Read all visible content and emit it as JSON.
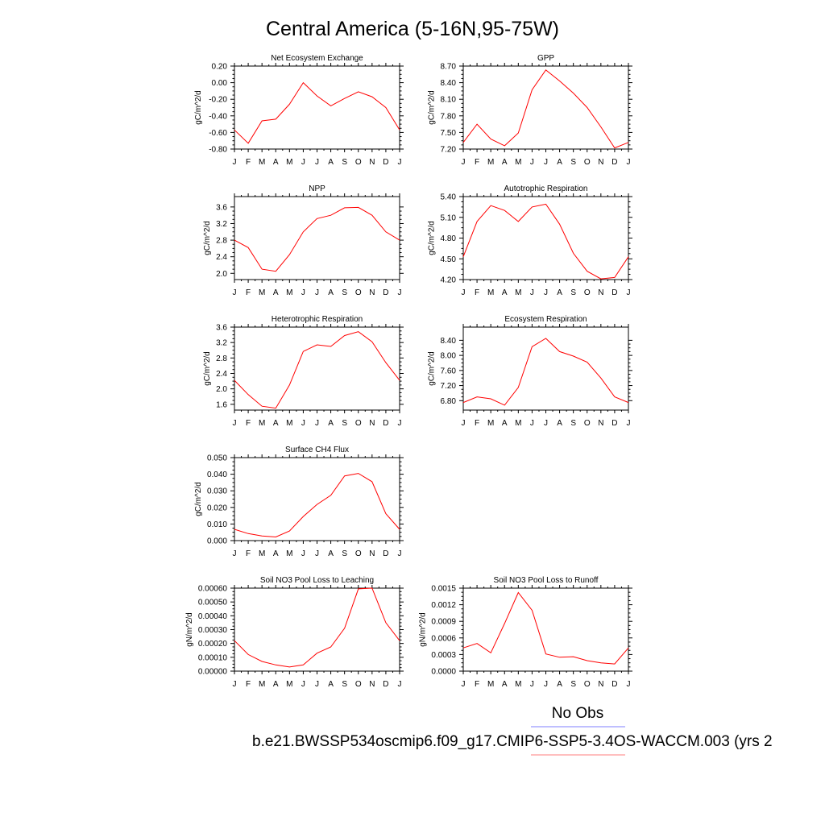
{
  "figure": {
    "title": "Central America (5-16N,95-75W)",
    "legend_label": "No Obs",
    "case_label": "b.e21.BWSSP534oscmip6.f09_g17.CMIP6-SSP5-3.4OS-WACCM.003 (yrs 2",
    "line_color": "#ff0000",
    "obs_line_color": "#7f7fff",
    "case_line_color": "#ff7f7f"
  },
  "chart_data": [
    {
      "type": "line",
      "title": "Net Ecosystem Exchange",
      "ylabel": "gC/m^2/d",
      "categories": [
        "J",
        "F",
        "M",
        "A",
        "M",
        "J",
        "J",
        "A",
        "S",
        "O",
        "N",
        "D",
        "J"
      ],
      "values": [
        -0.57,
        -0.73,
        -0.46,
        -0.44,
        -0.26,
        0.0,
        -0.16,
        -0.28,
        -0.19,
        -0.11,
        -0.17,
        -0.3,
        -0.57
      ],
      "ylim": [
        -0.8,
        0.2
      ],
      "yticks": [
        -0.8,
        -0.6,
        -0.4,
        -0.2,
        0.0,
        0.2
      ],
      "ytick_labels": [
        "-0.80",
        "-0.60",
        "-0.40",
        "-0.20",
        "0.00",
        "0.20"
      ]
    },
    {
      "type": "line",
      "title": "GPP",
      "ylabel": "gC/m^2/d",
      "categories": [
        "J",
        "F",
        "M",
        "A",
        "M",
        "J",
        "J",
        "A",
        "S",
        "O",
        "N",
        "D",
        "J"
      ],
      "values": [
        7.32,
        7.65,
        7.38,
        7.26,
        7.49,
        8.27,
        8.63,
        8.43,
        8.21,
        7.95,
        7.6,
        7.22,
        7.32
      ],
      "ylim": [
        7.2,
        8.7
      ],
      "yticks": [
        7.2,
        7.5,
        7.8,
        8.1,
        8.4,
        8.7
      ],
      "ytick_labels": [
        "7.20",
        "7.50",
        "7.80",
        "8.10",
        "8.40",
        "8.70"
      ]
    },
    {
      "type": "line",
      "title": "NPP",
      "ylabel": "gC/m^2/d",
      "categories": [
        "J",
        "F",
        "M",
        "A",
        "M",
        "J",
        "J",
        "A",
        "S",
        "O",
        "N",
        "D",
        "J"
      ],
      "values": [
        2.8,
        2.62,
        2.1,
        2.05,
        2.45,
        3.0,
        3.32,
        3.4,
        3.58,
        3.59,
        3.4,
        3.0,
        2.8
      ],
      "ylim": [
        1.85,
        3.85
      ],
      "yticks": [
        2.0,
        2.4,
        2.8,
        3.2,
        3.6
      ],
      "ytick_labels": [
        "2.0",
        "2.4",
        "2.8",
        "3.2",
        "3.6"
      ]
    },
    {
      "type": "line",
      "title": "Autotrophic Respiration",
      "ylabel": "gC/m^2/d",
      "categories": [
        "J",
        "F",
        "M",
        "A",
        "M",
        "J",
        "J",
        "A",
        "S",
        "O",
        "N",
        "D",
        "J"
      ],
      "values": [
        4.53,
        5.04,
        5.27,
        5.2,
        5.04,
        5.25,
        5.29,
        5.0,
        4.58,
        4.32,
        4.21,
        4.23,
        4.53
      ],
      "ylim": [
        4.2,
        5.4
      ],
      "yticks": [
        4.2,
        4.5,
        4.8,
        5.1,
        5.4
      ],
      "ytick_labels": [
        "4.20",
        "4.50",
        "4.80",
        "5.10",
        "5.40"
      ]
    },
    {
      "type": "line",
      "title": "Heterotrophic Respiration",
      "ylabel": "gC/m^2/d",
      "categories": [
        "J",
        "F",
        "M",
        "A",
        "M",
        "J",
        "J",
        "A",
        "S",
        "O",
        "N",
        "D",
        "J"
      ],
      "values": [
        2.22,
        1.85,
        1.55,
        1.5,
        2.1,
        2.97,
        3.14,
        3.1,
        3.38,
        3.48,
        3.22,
        2.68,
        2.22
      ],
      "ylim": [
        1.45,
        3.6
      ],
      "yticks": [
        1.6,
        2.0,
        2.4,
        2.8,
        3.2,
        3.6
      ],
      "ytick_labels": [
        "1.6",
        "2.0",
        "2.4",
        "2.8",
        "3.2",
        "3.6"
      ]
    },
    {
      "type": "line",
      "title": "Ecosystem Respiration",
      "ylabel": "gC/m^2/d",
      "categories": [
        "J",
        "F",
        "M",
        "A",
        "M",
        "J",
        "J",
        "A",
        "S",
        "O",
        "N",
        "D",
        "J"
      ],
      "values": [
        6.75,
        6.9,
        6.85,
        6.68,
        7.15,
        8.23,
        8.45,
        8.1,
        7.98,
        7.82,
        7.4,
        6.9,
        6.75
      ],
      "ylim": [
        6.55,
        8.75
      ],
      "yticks": [
        6.8,
        7.2,
        7.6,
        8.0,
        8.4
      ],
      "ytick_labels": [
        "6.80",
        "7.20",
        "7.60",
        "8.00",
        "8.40"
      ]
    },
    {
      "type": "line",
      "title": "Surface CH4 Flux",
      "ylabel": "gC/m^2/d",
      "categories": [
        "J",
        "F",
        "M",
        "A",
        "M",
        "J",
        "J",
        "A",
        "S",
        "O",
        "N",
        "D",
        "J"
      ],
      "values": [
        0.0068,
        0.0042,
        0.0028,
        0.0022,
        0.0058,
        0.0145,
        0.0218,
        0.0273,
        0.039,
        0.0405,
        0.0355,
        0.0162,
        0.0068
      ],
      "ylim": [
        0.0,
        0.05
      ],
      "yticks": [
        0.0,
        0.01,
        0.02,
        0.03,
        0.04,
        0.05
      ],
      "ytick_labels": [
        "0.000",
        "0.010",
        "0.020",
        "0.030",
        "0.040",
        "0.050"
      ]
    },
    {
      "type": "line",
      "title": "Soil NO3 Pool Loss to Leaching",
      "ylabel": "gN/m^2/d",
      "categories": [
        "J",
        "F",
        "M",
        "A",
        "M",
        "J",
        "J",
        "A",
        "S",
        "O",
        "N",
        "D",
        "J"
      ],
      "values": [
        0.00022,
        0.00012,
        7e-05,
        4.5e-05,
        3e-05,
        4.5e-05,
        0.00013,
        0.000175,
        0.00031,
        0.000595,
        0.0006,
        0.00035,
        0.00022
      ],
      "ylim": [
        0.0,
        0.0006
      ],
      "yticks": [
        0.0,
        0.0001,
        0.0002,
        0.0003,
        0.0004,
        0.0005,
        0.0006
      ],
      "ytick_labels": [
        "0.00000",
        "0.00010",
        "0.00020",
        "0.00030",
        "0.00040",
        "0.00050",
        "0.00060"
      ]
    },
    {
      "type": "line",
      "title": "Soil NO3 Pool Loss to Runoff",
      "ylabel": "gN/m^2/d",
      "categories": [
        "J",
        "F",
        "M",
        "A",
        "M",
        "J",
        "J",
        "A",
        "S",
        "O",
        "N",
        "D",
        "J"
      ],
      "values": [
        0.00042,
        0.0005,
        0.00033,
        0.00086,
        0.00142,
        0.0011,
        0.00031,
        0.00025,
        0.00026,
        0.00019,
        0.00015,
        0.00013,
        0.00042
      ],
      "ylim": [
        0.0,
        0.0015
      ],
      "yticks": [
        0.0,
        0.0003,
        0.0006,
        0.0009,
        0.0012,
        0.0015
      ],
      "ytick_labels": [
        "0.0000",
        "0.0003",
        "0.0006",
        "0.0009",
        "0.0012",
        "0.0015"
      ]
    }
  ]
}
